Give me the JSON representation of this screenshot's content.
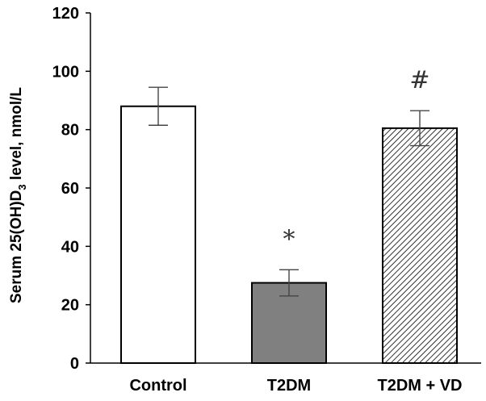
{
  "chart_data": {
    "type": "bar",
    "title": "",
    "xlabel": "",
    "ylabel": "Serum 25(OH)D3 level, nmol/L",
    "ylabel_parts": {
      "before": "Serum 25(OH)D",
      "sub": "3",
      "after": " level, nmol/L"
    },
    "ylim": [
      0,
      120
    ],
    "yticks": [
      0,
      20,
      40,
      60,
      80,
      100,
      120
    ],
    "categories": [
      "Control",
      "T2DM",
      "T2DM + VD"
    ],
    "values": [
      88,
      27.5,
      80.5
    ],
    "errors": [
      6.5,
      4.5,
      6
    ],
    "bar_styles": [
      "white",
      "gray",
      "hatched"
    ],
    "annotations": [
      "",
      "*",
      "#"
    ],
    "colors": {
      "gray_fill": "#808080",
      "axis": "#000000",
      "annotation": "#333333"
    }
  }
}
